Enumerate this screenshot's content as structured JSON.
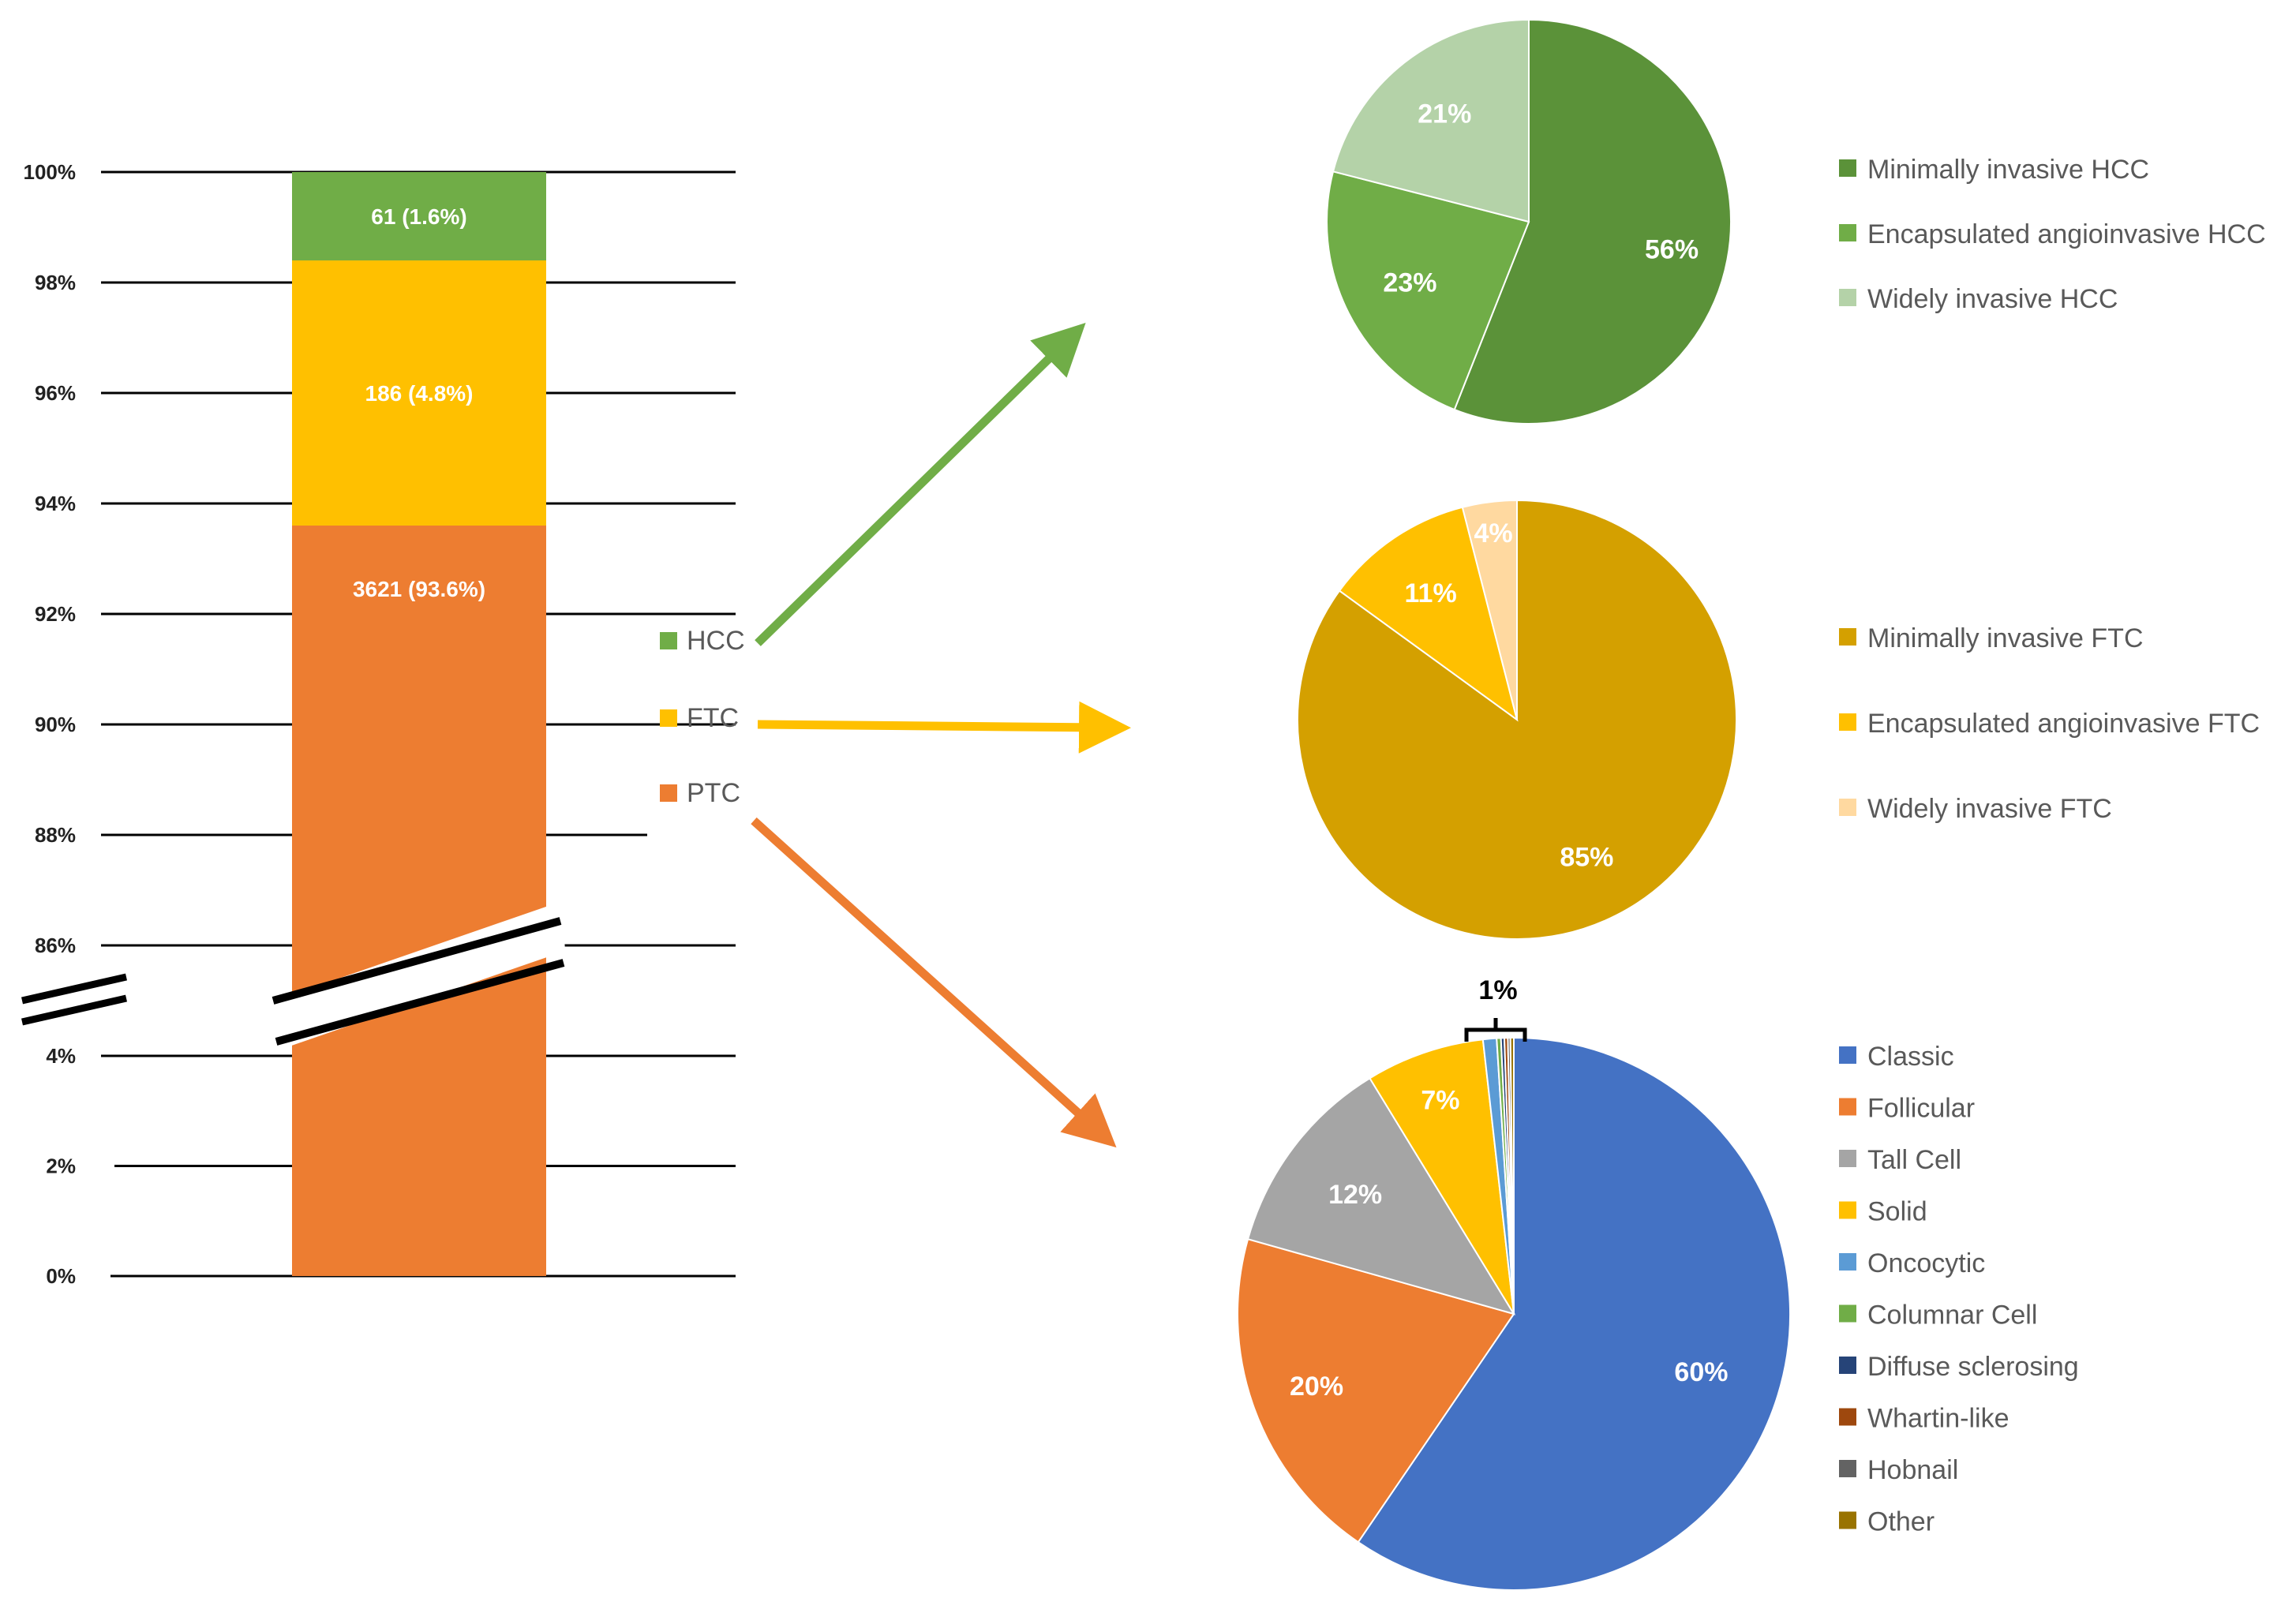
{
  "colors": {
    "ptc": "#ED7D31",
    "ftc": "#FFC000",
    "hcc": "#70AD47",
    "arrow_hcc": "#70AD47",
    "arrow_ftc": "#FFC000",
    "arrow_ptc": "#ED7D31"
  },
  "chart_data": [
    {
      "type": "bar",
      "subtype": "stacked-100-broken-axis",
      "y_ticks": [
        "0%",
        "2%",
        "4%",
        "86%",
        "88%",
        "90%",
        "92%",
        "94%",
        "96%",
        "98%",
        "100%"
      ],
      "axis_break": "between 4% and 86%",
      "segments": [
        {
          "name": "PTC",
          "count": 3621,
          "percent": 93.6,
          "label": "3621 (93.6%)",
          "color": "#ED7D31"
        },
        {
          "name": "FTC",
          "count": 186,
          "percent": 4.8,
          "label": "186 (4.8%)",
          "color": "#FFC000"
        },
        {
          "name": "HCC",
          "count": 61,
          "percent": 1.6,
          "label": "61 (1.6%)",
          "color": "#70AD47"
        }
      ],
      "legend": [
        "HCC",
        "FTC",
        "PTC"
      ],
      "legend_placement": "right"
    },
    {
      "type": "pie",
      "group": "HCC",
      "slices": [
        {
          "name": "Minimally invasive HCC",
          "value": 56,
          "label": "56%",
          "color": "#5B9239"
        },
        {
          "name": "Encapsulated angioinvasive HCC",
          "value": 23,
          "label": "23%",
          "color": "#70AD47"
        },
        {
          "name": "Widely invasive HCC",
          "value": 21,
          "label": "21%",
          "color": "#B4D2A8"
        }
      ],
      "legend_placement": "right"
    },
    {
      "type": "pie",
      "group": "FTC",
      "slices": [
        {
          "name": "Minimally invasive FTC",
          "value": 85,
          "label": "85%",
          "color": "#D4A000"
        },
        {
          "name": "Encapsulated angioinvasive FTC",
          "value": 11,
          "label": "11%",
          "color": "#FFC000"
        },
        {
          "name": "Widely invasive FTC",
          "value": 4,
          "label": "4%",
          "color": "#FFD9A0"
        }
      ],
      "legend_placement": "right"
    },
    {
      "type": "pie",
      "group": "PTC",
      "slices": [
        {
          "name": "Classic",
          "value": 60,
          "label": "60%",
          "color": "#4472C4"
        },
        {
          "name": "Follicular",
          "value": 20,
          "label": "20%",
          "color": "#ED7D31"
        },
        {
          "name": "Tall Cell",
          "value": 12,
          "label": "12%",
          "color": "#A5A5A5"
        },
        {
          "name": "Solid",
          "value": 7,
          "label": "7%",
          "color": "#FFC000"
        },
        {
          "name": "Oncocytic",
          "value": 0.8,
          "label": "",
          "color": "#5B9BD5"
        },
        {
          "name": "Columnar Cell",
          "value": 0.25,
          "label": "",
          "color": "#70AD47"
        },
        {
          "name": "Diffuse sclerosing",
          "value": 0.2,
          "label": "",
          "color": "#264478"
        },
        {
          "name": "Whartin-like",
          "value": 0.2,
          "label": "",
          "color": "#9E480E"
        },
        {
          "name": "Hobnail",
          "value": 0.15,
          "label": "",
          "color": "#636363"
        },
        {
          "name": "Other",
          "value": 0.2,
          "label": "",
          "color": "#997300"
        }
      ],
      "bracket_label": "1%",
      "legend_placement": "right"
    }
  ]
}
